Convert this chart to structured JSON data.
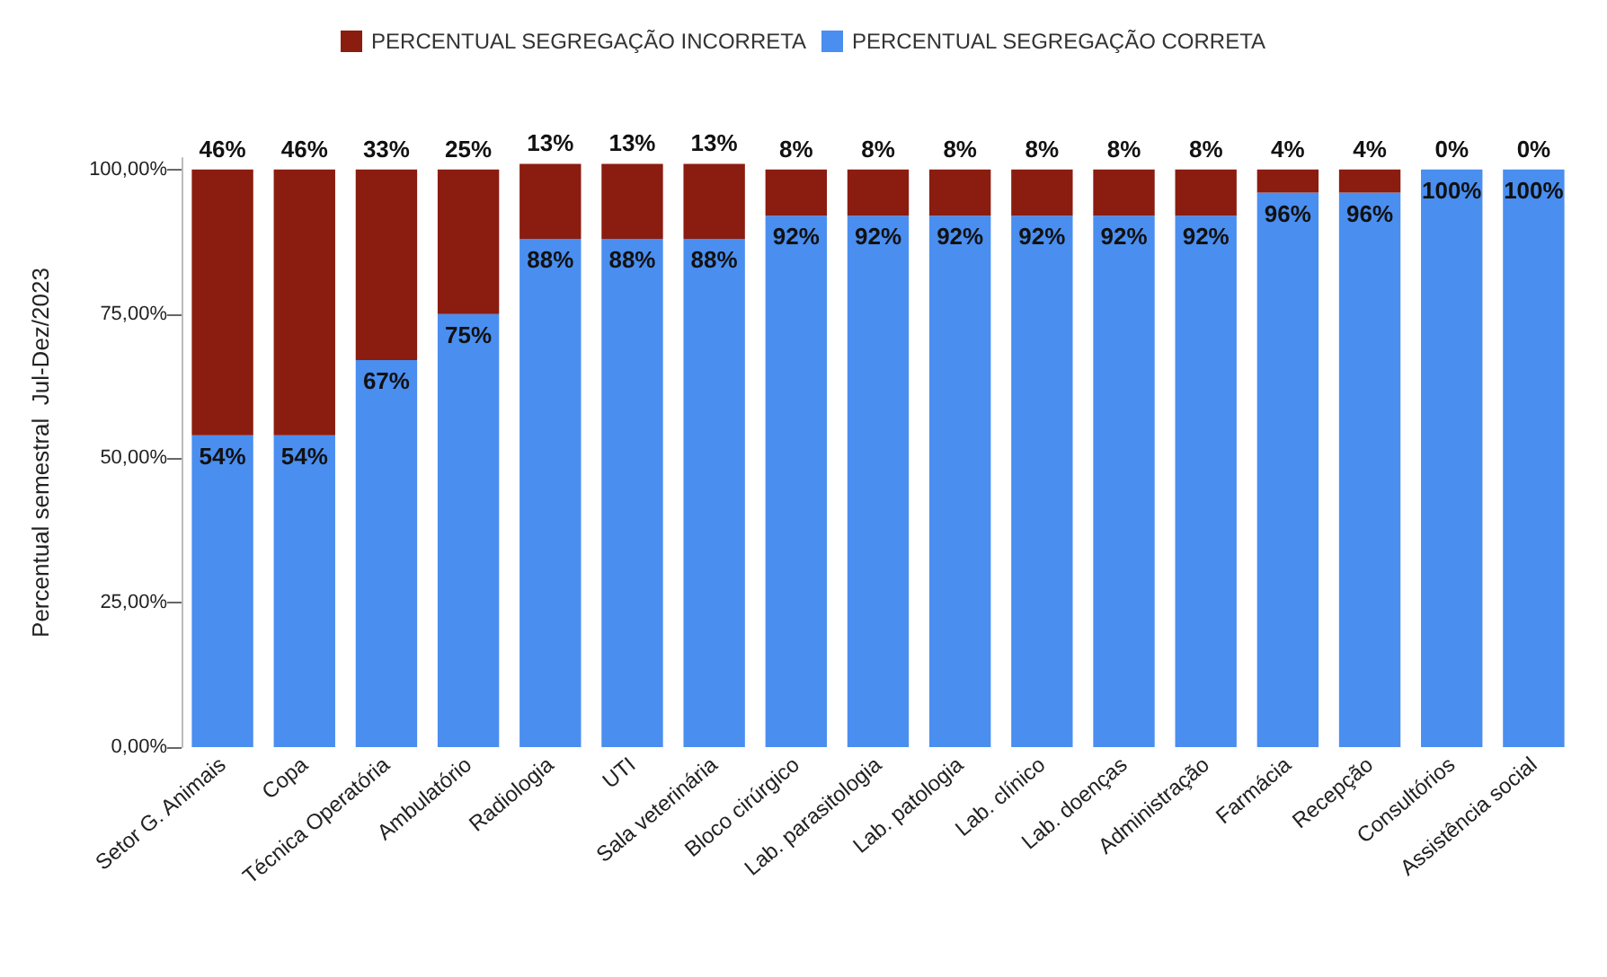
{
  "chart_data": {
    "type": "bar",
    "stacked": true,
    "ylabel": "Percentual semestral  Jul-Dez/2023",
    "categories": [
      "Setor G. Animais",
      "Copa",
      "Técnica Operatória",
      "Ambulatório",
      "Radiologia",
      "UTI",
      "Sala veterinária",
      "Bloco cirúrgico",
      "Lab. parasitologia",
      "Lab. patologia",
      "Lab. clínico",
      "Lab. doenças",
      "Administração",
      "Farmácia",
      "Recepção",
      "Consultórios",
      "Assistência social"
    ],
    "series": [
      {
        "name": "PERCENTUAL SEGREGAÇÃO CORRETA",
        "color": "#4a8ef0",
        "values": [
          54,
          54,
          67,
          75,
          88,
          88,
          88,
          92,
          92,
          92,
          92,
          92,
          92,
          96,
          96,
          100,
          100
        ],
        "value_labels": [
          "54%",
          "54%",
          "67%",
          "75%",
          "88%",
          "88%",
          "88%",
          "92%",
          "92%",
          "92%",
          "92%",
          "92%",
          "92%",
          "96%",
          "96%",
          "100%",
          "100%"
        ]
      },
      {
        "name": "PERCENTUAL SEGREGAÇÃO INCORRETA",
        "color": "#8b1c10",
        "values": [
          46,
          46,
          33,
          25,
          13,
          13,
          13,
          8,
          8,
          8,
          8,
          8,
          8,
          4,
          4,
          0,
          0
        ],
        "value_labels": [
          "46%",
          "46%",
          "33%",
          "25%",
          "13%",
          "13%",
          "13%",
          "8%",
          "8%",
          "8%",
          "8%",
          "8%",
          "8%",
          "4%",
          "4%",
          "0%",
          "0%"
        ]
      }
    ],
    "ylim": [
      0,
      102
    ],
    "yticks": [
      {
        "value": 0,
        "label": "0,00%"
      },
      {
        "value": 25,
        "label": "25,00%"
      },
      {
        "value": 50,
        "label": "50,00%"
      },
      {
        "value": 75,
        "label": "75,00%"
      },
      {
        "value": 100,
        "label": "100,00%"
      }
    ],
    "grid": false,
    "legend": "top"
  }
}
